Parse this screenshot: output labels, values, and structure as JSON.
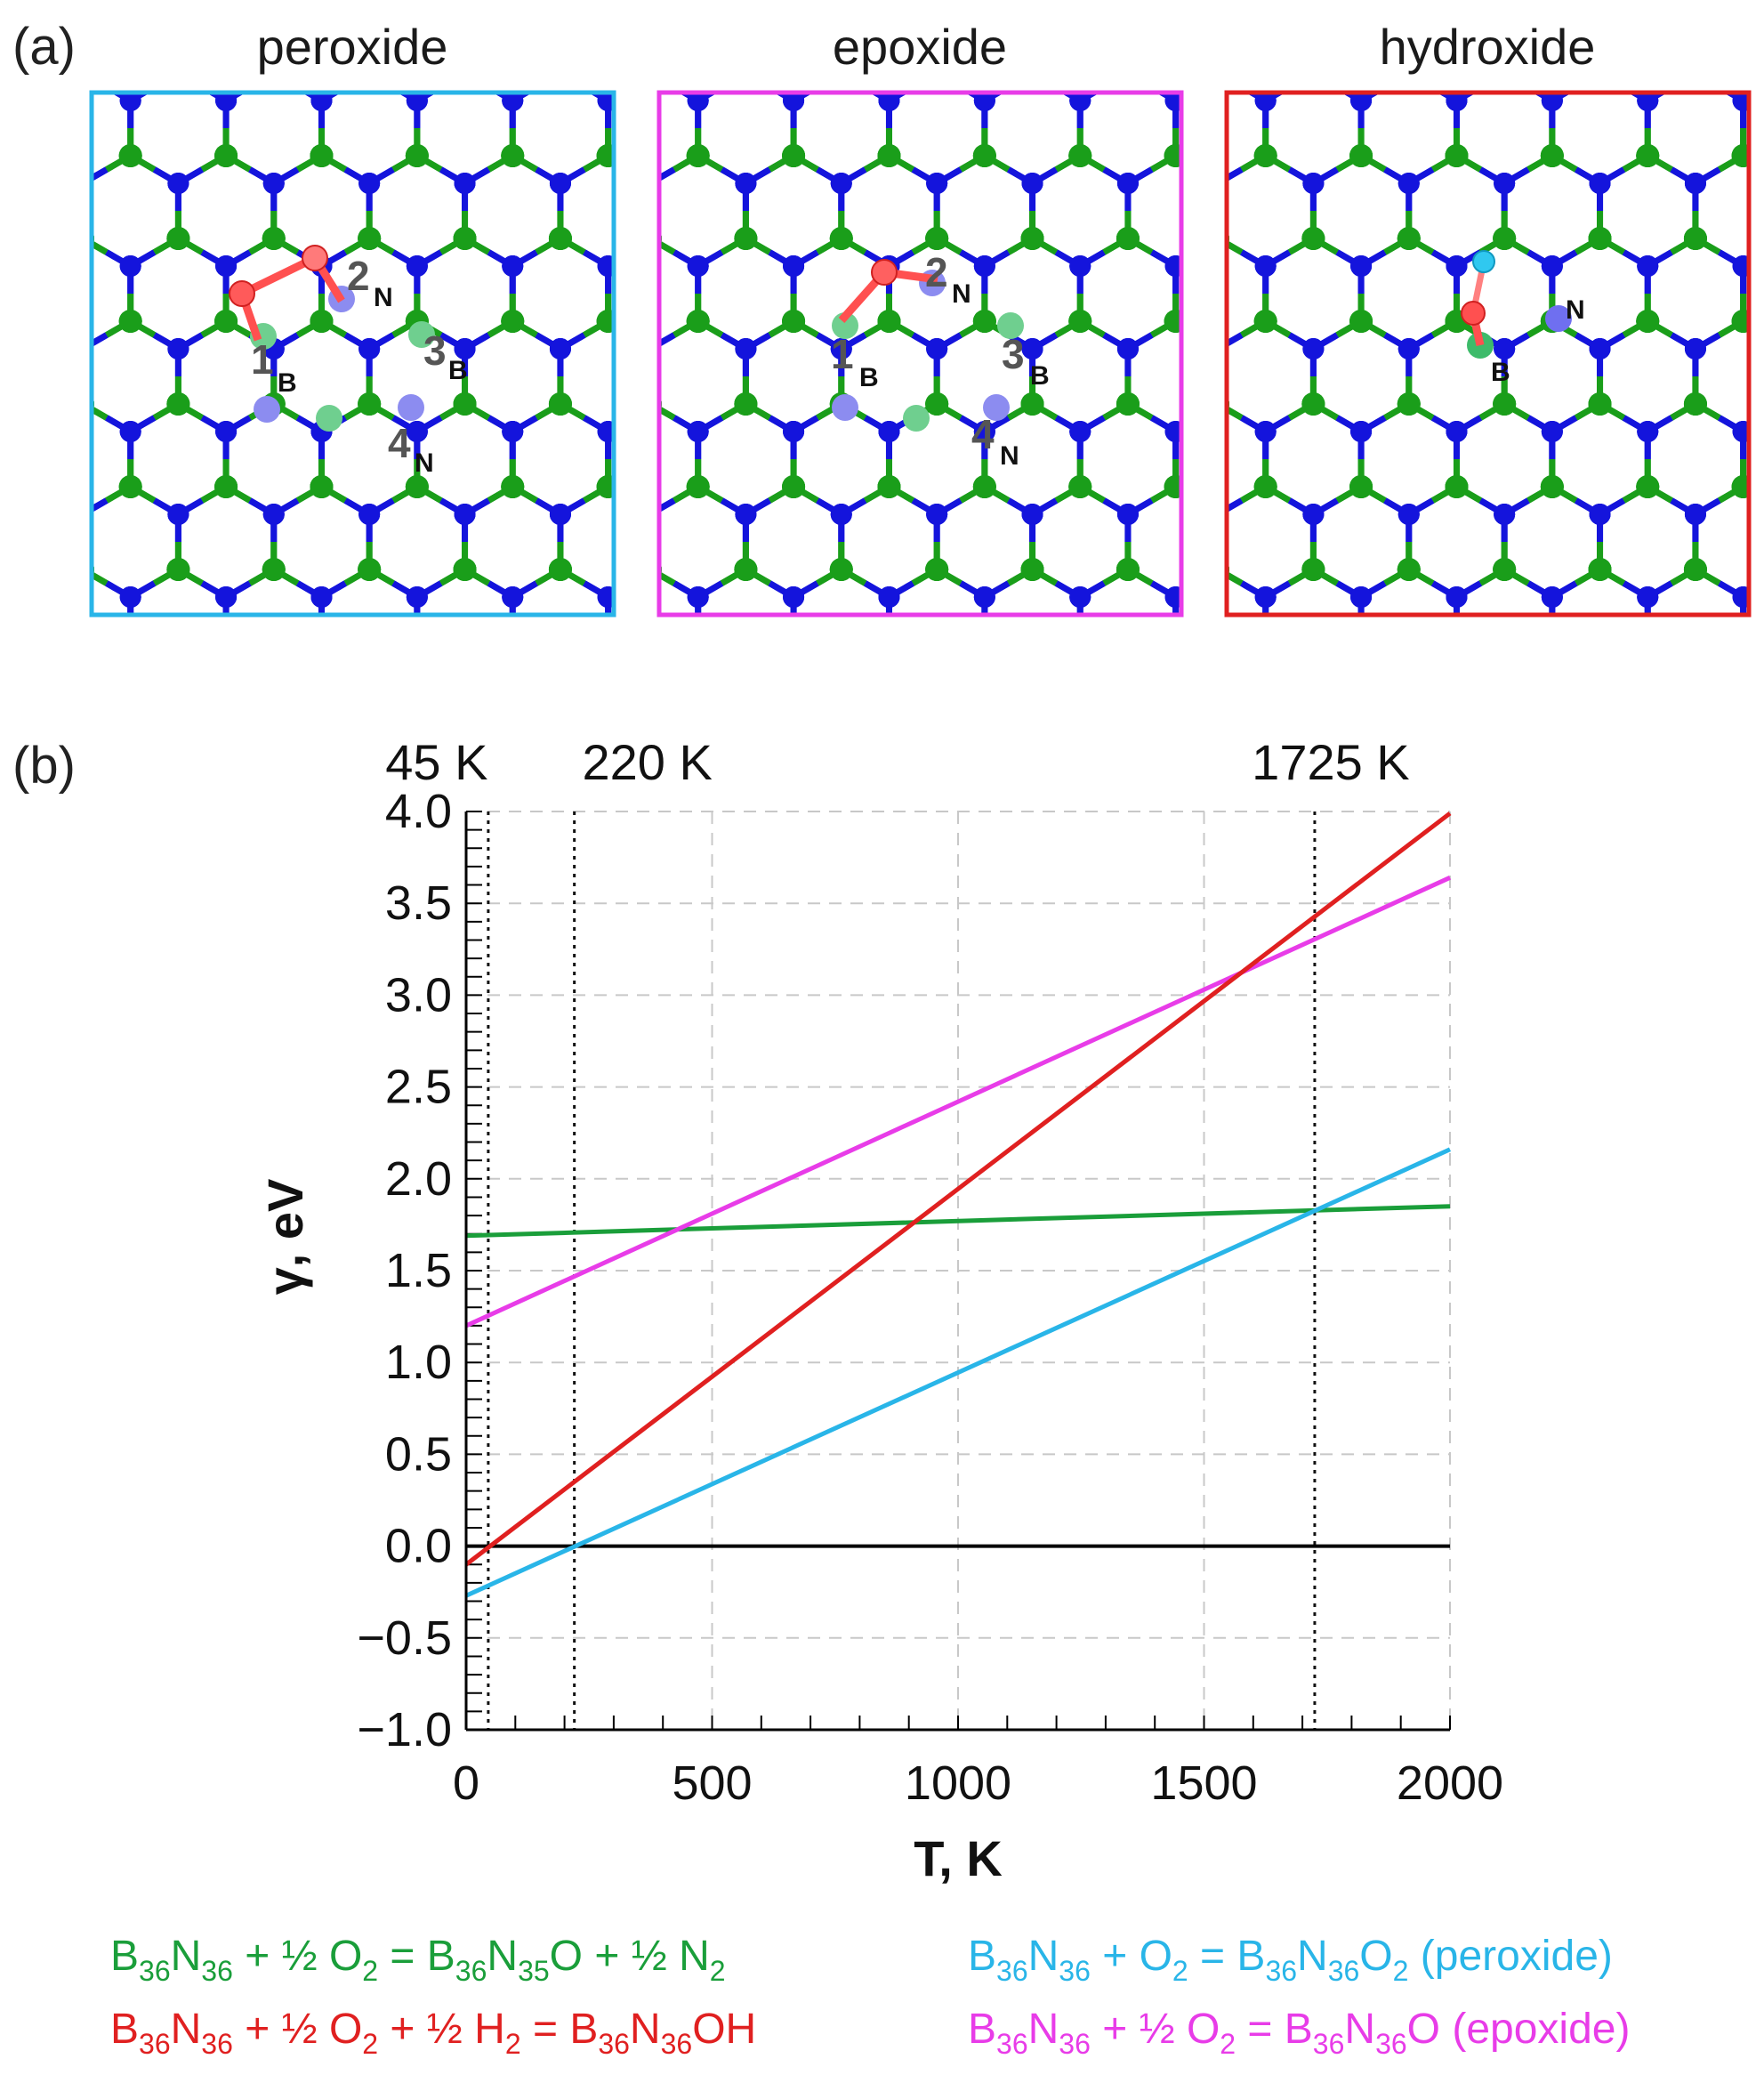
{
  "panel_a": {
    "label": "(a)",
    "panels": [
      {
        "title": "peroxide",
        "frame_color": "#29b5e8",
        "site_labels": [
          "1",
          "2",
          "3",
          "4"
        ],
        "site_subscripts": [
          "B",
          "N",
          "B",
          "N"
        ]
      },
      {
        "title": "epoxide",
        "frame_color": "#e83ce8",
        "site_labels": [
          "1",
          "2",
          "3",
          "4"
        ],
        "site_subscripts": [
          "B",
          "N",
          "B",
          "N"
        ]
      },
      {
        "title": "hydroxide",
        "frame_color": "#e02020",
        "site_labels": [
          "N",
          "B"
        ]
      }
    ],
    "atom_colors": {
      "boron": "#1a9e1a",
      "nitrogen": "#1414dc",
      "oxygen": "#ff4040",
      "hydrogen": "#30c8f0"
    }
  },
  "panel_b": {
    "label": "(b)",
    "temperature_markers": [
      {
        "value": 45,
        "label": "45 K"
      },
      {
        "value": 220,
        "label": "220 K"
      },
      {
        "value": 1725,
        "label": "1725 K"
      }
    ],
    "legend": [
      {
        "color": "#1a9e3a",
        "parts": [
          [
            "B",
            ""
          ],
          [
            "36",
            "sub"
          ],
          [
            "N",
            ""
          ],
          [
            "36",
            "sub"
          ],
          [
            " + ½ O",
            ""
          ],
          [
            "2",
            "sub"
          ],
          [
            " = B",
            ""
          ],
          [
            "36",
            "sub"
          ],
          [
            "N",
            ""
          ],
          [
            "35",
            "sub"
          ],
          [
            "O + ½ N",
            ""
          ],
          [
            "2",
            "sub"
          ]
        ]
      },
      {
        "color": "#29b5e8",
        "parts": [
          [
            "B",
            ""
          ],
          [
            "36",
            "sub"
          ],
          [
            "N",
            ""
          ],
          [
            "36",
            "sub"
          ],
          [
            " + O",
            ""
          ],
          [
            "2",
            "sub"
          ],
          [
            " = B",
            ""
          ],
          [
            "36",
            "sub"
          ],
          [
            "N",
            ""
          ],
          [
            "36",
            "sub"
          ],
          [
            "O",
            ""
          ],
          [
            "2",
            "sub"
          ],
          [
            " (peroxide)",
            ""
          ]
        ]
      },
      {
        "color": "#e02020",
        "parts": [
          [
            "B",
            ""
          ],
          [
            "36",
            "sub"
          ],
          [
            "N",
            ""
          ],
          [
            "36",
            "sub"
          ],
          [
            " + ½ O",
            ""
          ],
          [
            "2",
            "sub"
          ],
          [
            " + ½ H",
            ""
          ],
          [
            "2",
            "sub"
          ],
          [
            " = B",
            ""
          ],
          [
            "36",
            "sub"
          ],
          [
            "N",
            ""
          ],
          [
            "36",
            "sub"
          ],
          [
            "OH",
            ""
          ]
        ]
      },
      {
        "color": "#e83ce8",
        "parts": [
          [
            "B",
            ""
          ],
          [
            "36",
            "sub"
          ],
          [
            "N",
            ""
          ],
          [
            "36",
            "sub"
          ],
          [
            " + ½ O",
            ""
          ],
          [
            "2",
            "sub"
          ],
          [
            " = B",
            ""
          ],
          [
            "36",
            "sub"
          ],
          [
            "N",
            ""
          ],
          [
            "36",
            "sub"
          ],
          [
            "O (epoxide)",
            ""
          ]
        ]
      }
    ]
  },
  "chart_data": {
    "type": "line",
    "xlabel": "T, K",
    "ylabel": "γ, eV",
    "xlim": [
      0,
      2000
    ],
    "ylim": [
      -1.0,
      4.0
    ],
    "xticks": [
      0,
      500,
      1000,
      1500,
      2000
    ],
    "xtick_labels": [
      "0",
      "500",
      "1000",
      "1500",
      "2000"
    ],
    "yticks": [
      -1.0,
      -0.5,
      0.0,
      0.5,
      1.0,
      1.5,
      2.0,
      2.5,
      3.0,
      3.5,
      4.0
    ],
    "ytick_labels": [
      "−1.0",
      "−0.5",
      "0.0",
      "0.5",
      "1.0",
      "1.5",
      "2.0",
      "2.5",
      "3.0",
      "3.5",
      "4.0"
    ],
    "grid": true,
    "series": [
      {
        "color": "#1a9e3a",
        "x": [
          0,
          2000
        ],
        "y": [
          1.69,
          1.85
        ]
      },
      {
        "color": "#e83ce8",
        "x": [
          0,
          2000
        ],
        "y": [
          1.2,
          3.64
        ]
      },
      {
        "color": "#e02020",
        "x": [
          0,
          2000
        ],
        "y": [
          -0.1,
          3.99
        ]
      },
      {
        "color": "#29b5e8",
        "x": [
          0,
          2000
        ],
        "y": [
          -0.27,
          2.16
        ]
      }
    ],
    "reference_line_y": 0.0,
    "vertical_markers_x": [
      45,
      220,
      1725
    ]
  }
}
